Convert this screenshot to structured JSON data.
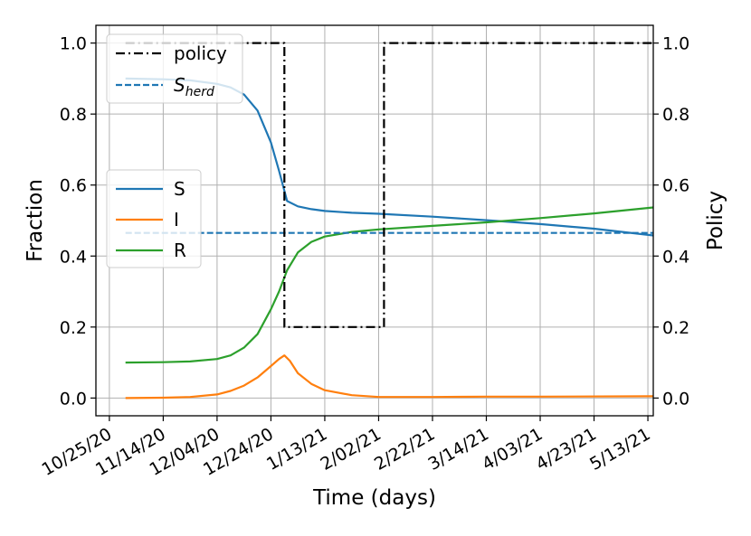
{
  "chart_data": {
    "type": "line",
    "xlabel": "Time (days)",
    "ylabel": "Fraction",
    "y2label": "Policy",
    "x_ticks": [
      "10/25/20",
      "11/14/20",
      "12/04/20",
      "12/24/20",
      "1/13/21",
      "2/02/21",
      "2/22/21",
      "3/14/21",
      "4/03/21",
      "4/23/21",
      "5/13/21"
    ],
    "x_range": [
      "2020-10-20",
      "2021-05-15"
    ],
    "ylim": [
      -0.05,
      1.05
    ],
    "y2lim": [
      -0.05,
      1.05
    ],
    "y_ticks": [
      "0.0",
      "0.2",
      "0.4",
      "0.6",
      "0.8",
      "1.0"
    ],
    "y2_ticks": [
      "0.0",
      "0.2",
      "0.4",
      "0.6",
      "0.8",
      "1.0"
    ],
    "grid": true,
    "legend_top": {
      "placement": "top-left",
      "entries": [
        "policy",
        "S_herd"
      ]
    },
    "legend_mid": {
      "placement": "center-left",
      "entries": [
        "S",
        "I",
        "R"
      ]
    },
    "s_herd_label": {
      "main": "S",
      "sub": "herd"
    },
    "colors": {
      "S": "#1f77b4",
      "I": "#ff7f0e",
      "R": "#2ca02c",
      "policy": "#000000",
      "S_herd": "#1f77b4"
    },
    "series": [
      {
        "name": "S",
        "axis": "left",
        "points": [
          [
            "2020-10-31",
            0.9
          ],
          [
            "2020-11-14",
            0.898
          ],
          [
            "2020-11-24",
            0.895
          ],
          [
            "2020-12-04",
            0.885
          ],
          [
            "2020-12-09",
            0.875
          ],
          [
            "2020-12-14",
            0.855
          ],
          [
            "2020-12-19",
            0.81
          ],
          [
            "2020-12-24",
            0.72
          ],
          [
            "2020-12-27",
            0.64
          ],
          [
            "2020-12-30",
            0.555
          ],
          [
            "2021-01-03",
            0.54
          ],
          [
            "2021-01-08",
            0.532
          ],
          [
            "2021-01-13",
            0.527
          ],
          [
            "2021-01-23",
            0.522
          ],
          [
            "2021-02-02",
            0.519
          ],
          [
            "2021-02-22",
            0.511
          ],
          [
            "2021-03-14",
            0.501
          ],
          [
            "2021-04-03",
            0.49
          ],
          [
            "2021-04-23",
            0.477
          ],
          [
            "2021-05-15",
            0.458
          ]
        ]
      },
      {
        "name": "I",
        "axis": "left",
        "points": [
          [
            "2020-10-31",
            0.0
          ],
          [
            "2020-11-14",
            0.001
          ],
          [
            "2020-11-24",
            0.003
          ],
          [
            "2020-12-04",
            0.01
          ],
          [
            "2020-12-09",
            0.02
          ],
          [
            "2020-12-14",
            0.035
          ],
          [
            "2020-12-19",
            0.058
          ],
          [
            "2020-12-24",
            0.09
          ],
          [
            "2020-12-27",
            0.11
          ],
          [
            "2020-12-29",
            0.12
          ],
          [
            "2020-12-31",
            0.105
          ],
          [
            "2021-01-03",
            0.07
          ],
          [
            "2021-01-08",
            0.04
          ],
          [
            "2021-01-13",
            0.022
          ],
          [
            "2021-01-23",
            0.008
          ],
          [
            "2021-02-02",
            0.003
          ],
          [
            "2021-02-22",
            0.003
          ],
          [
            "2021-03-14",
            0.004
          ],
          [
            "2021-04-03",
            0.004
          ],
          [
            "2021-05-15",
            0.005
          ]
        ]
      },
      {
        "name": "R",
        "axis": "left",
        "points": [
          [
            "2020-10-31",
            0.1
          ],
          [
            "2020-11-14",
            0.101
          ],
          [
            "2020-11-24",
            0.103
          ],
          [
            "2020-12-04",
            0.11
          ],
          [
            "2020-12-09",
            0.12
          ],
          [
            "2020-12-14",
            0.142
          ],
          [
            "2020-12-19",
            0.18
          ],
          [
            "2020-12-24",
            0.25
          ],
          [
            "2020-12-27",
            0.3
          ],
          [
            "2020-12-30",
            0.36
          ],
          [
            "2021-01-03",
            0.41
          ],
          [
            "2021-01-08",
            0.44
          ],
          [
            "2021-01-13",
            0.455
          ],
          [
            "2021-01-23",
            0.468
          ],
          [
            "2021-02-02",
            0.475
          ],
          [
            "2021-02-22",
            0.485
          ],
          [
            "2021-03-14",
            0.495
          ],
          [
            "2021-04-03",
            0.507
          ],
          [
            "2021-04-23",
            0.52
          ],
          [
            "2021-05-15",
            0.537
          ]
        ]
      },
      {
        "name": "S_herd",
        "axis": "left",
        "points": [
          [
            "2020-10-31",
            0.465
          ],
          [
            "2021-05-15",
            0.465
          ]
        ]
      },
      {
        "name": "policy",
        "axis": "right",
        "points": [
          [
            "2020-10-31",
            1.0
          ],
          [
            "2020-12-29",
            1.0
          ],
          [
            "2020-12-29",
            0.2
          ],
          [
            "2021-02-04",
            0.2
          ],
          [
            "2021-02-04",
            1.0
          ],
          [
            "2021-05-15",
            1.0
          ]
        ]
      }
    ]
  }
}
